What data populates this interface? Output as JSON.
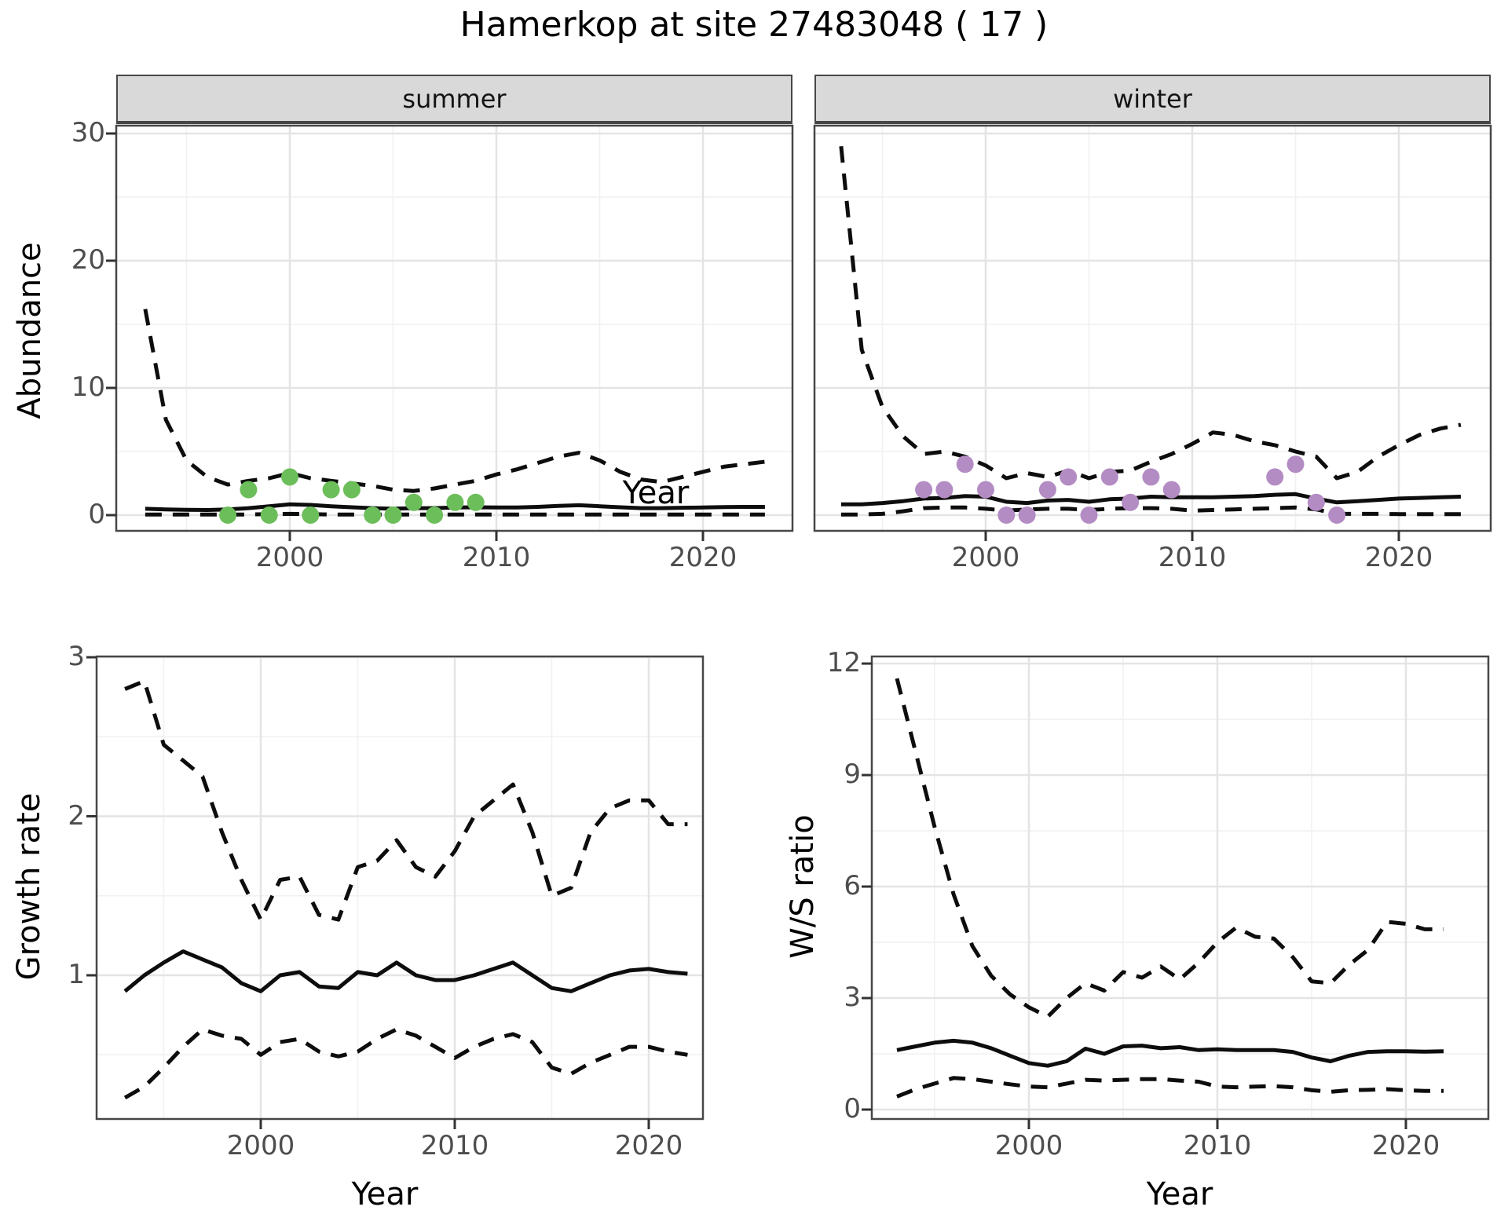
{
  "title": "Hamerkop at site 27483048 ( 17 )",
  "axis_titles": {
    "abundance": "Abundance",
    "year_top": "Year",
    "growth": "Growth rate",
    "year_growth": "Year",
    "ws": "W/S ratio",
    "year_ws": "Year"
  },
  "colors": {
    "summer_point": "#6cbe5a",
    "winter_point": "#b48cc4",
    "line": "#0d0d0d",
    "grid_major": "#e4e4e4",
    "grid_minor": "#f1f1f1",
    "panel_border": "#474747",
    "strip_bg": "#d9d9d9",
    "tick_text": "#4d4d4d",
    "tick_mark": "#333333"
  },
  "chart_data": [
    {
      "id": "summer",
      "type": "line",
      "facet_label": "summer",
      "xlabel": "Year",
      "ylabel": "Abundance",
      "x_ticks": [
        2000,
        2010,
        2020
      ],
      "x_minor": [
        1995,
        2005,
        2015
      ],
      "y_ticks": [
        0,
        10,
        20,
        30
      ],
      "y_minor": [
        5,
        15,
        25
      ],
      "xlim": [
        1991.6,
        2024.3
      ],
      "ylim": [
        -1.23,
        30.6
      ],
      "x_start": 1993,
      "series": [
        {
          "name": "mean",
          "style": "solid",
          "values": [
            0.5,
            0.45,
            0.42,
            0.4,
            0.45,
            0.55,
            0.7,
            0.85,
            0.8,
            0.7,
            0.62,
            0.55,
            0.5,
            0.55,
            0.55,
            0.6,
            0.62,
            0.6,
            0.6,
            0.65,
            0.72,
            0.78,
            0.7,
            0.62,
            0.55,
            0.55,
            0.58,
            0.6,
            0.63,
            0.65,
            0.65
          ]
        },
        {
          "name": "upper_ci",
          "style": "dashed",
          "values": [
            16.2,
            7.5,
            4.3,
            3.0,
            2.4,
            2.7,
            2.9,
            3.3,
            2.9,
            2.7,
            2.5,
            2.3,
            2.0,
            1.9,
            2.1,
            2.4,
            2.7,
            3.2,
            3.6,
            4.1,
            4.6,
            4.9,
            4.3,
            3.4,
            2.8,
            2.6,
            3.0,
            3.4,
            3.8,
            4.0,
            4.2
          ]
        },
        {
          "name": "lower_ci",
          "style": "dashed",
          "values": [
            0.05,
            0.05,
            0.05,
            0.05,
            0.05,
            0.05,
            0.08,
            0.1,
            0.08,
            0.05,
            0.05,
            0.05,
            0.05,
            0.05,
            0.05,
            0.05,
            0.05,
            0.05,
            0.05,
            0.05,
            0.05,
            0.05,
            0.05,
            0.05,
            0.05,
            0.05,
            0.05,
            0.05,
            0.05,
            0.05,
            0.05
          ]
        }
      ],
      "points": {
        "name": "observed_summer",
        "color_key": "summer_point",
        "data": [
          [
            1997,
            0
          ],
          [
            1998,
            2
          ],
          [
            1999,
            0
          ],
          [
            2000,
            3
          ],
          [
            2001,
            0
          ],
          [
            2002,
            2
          ],
          [
            2003,
            2
          ],
          [
            2004,
            0
          ],
          [
            2005,
            0
          ],
          [
            2006,
            1
          ],
          [
            2007,
            0
          ],
          [
            2008,
            1
          ],
          [
            2009,
            1
          ]
        ]
      }
    },
    {
      "id": "winter",
      "type": "line",
      "facet_label": "winter",
      "xlabel": "Year",
      "ylabel": "Abundance",
      "x_ticks": [
        2000,
        2010,
        2020
      ],
      "x_minor": [
        1995,
        2005,
        2015
      ],
      "y_ticks": [
        0,
        10,
        20,
        30
      ],
      "y_minor": [
        5,
        15,
        25
      ],
      "xlim": [
        1991.7,
        2024.4
      ],
      "ylim": [
        -1.23,
        30.6
      ],
      "x_start": 1993,
      "series": [
        {
          "name": "mean",
          "style": "solid",
          "values": [
            0.85,
            0.85,
            0.95,
            1.1,
            1.3,
            1.35,
            1.5,
            1.45,
            1.05,
            0.95,
            1.15,
            1.2,
            1.05,
            1.25,
            1.3,
            1.45,
            1.4,
            1.4,
            1.4,
            1.45,
            1.5,
            1.6,
            1.65,
            1.3,
            1.0,
            1.1,
            1.2,
            1.3,
            1.35,
            1.4,
            1.45
          ]
        },
        {
          "name": "upper_ci",
          "style": "dashed",
          "values": [
            29,
            13,
            8.5,
            6.2,
            4.8,
            5.0,
            4.6,
            3.9,
            2.9,
            3.3,
            3.0,
            3.5,
            2.9,
            3.4,
            3.5,
            4.2,
            4.8,
            5.6,
            6.5,
            6.3,
            5.8,
            5.5,
            5.0,
            4.6,
            2.9,
            3.4,
            4.6,
            5.5,
            6.3,
            6.8,
            7.1
          ]
        },
        {
          "name": "lower_ci",
          "style": "dashed",
          "values": [
            0.05,
            0.05,
            0.1,
            0.3,
            0.55,
            0.6,
            0.6,
            0.5,
            0.35,
            0.45,
            0.5,
            0.5,
            0.4,
            0.5,
            0.55,
            0.55,
            0.5,
            0.35,
            0.4,
            0.45,
            0.5,
            0.55,
            0.6,
            0.45,
            0.1,
            0.1,
            0.1,
            0.08,
            0.08,
            0.08,
            0.08
          ]
        }
      ],
      "points": {
        "name": "observed_winter",
        "color_key": "winter_point",
        "data": [
          [
            1997,
            2
          ],
          [
            1998,
            2
          ],
          [
            1999,
            4
          ],
          [
            2000,
            2
          ],
          [
            2001,
            0
          ],
          [
            2002,
            0
          ],
          [
            2003,
            2
          ],
          [
            2004,
            3
          ],
          [
            2005,
            0
          ],
          [
            2006,
            3
          ],
          [
            2007,
            1
          ],
          [
            2008,
            3
          ],
          [
            2009,
            2
          ],
          [
            2014,
            3
          ],
          [
            2015,
            4
          ],
          [
            2016,
            1
          ],
          [
            2017,
            0
          ]
        ]
      }
    },
    {
      "id": "growth_rate",
      "type": "line",
      "facet_label": "",
      "xlabel": "Year",
      "ylabel": "Growth rate",
      "x_ticks": [
        2000,
        2010,
        2020
      ],
      "x_minor": [
        1995,
        2005,
        2015
      ],
      "y_ticks": [
        1,
        2,
        3
      ],
      "y_minor": [
        0.5,
        1.5,
        2.5
      ],
      "xlim": [
        1991.5,
        2022.8
      ],
      "ylim": [
        0.1,
        3.0
      ],
      "x_start": 1993,
      "series": [
        {
          "name": "mean",
          "style": "solid",
          "values": [
            0.9,
            1.0,
            1.08,
            1.15,
            1.1,
            1.05,
            0.95,
            0.9,
            1.0,
            1.02,
            0.93,
            0.92,
            1.02,
            1.0,
            1.08,
            1.0,
            0.97,
            0.97,
            1.0,
            1.04,
            1.08,
            1.0,
            0.92,
            0.9,
            0.95,
            1.0,
            1.03,
            1.04,
            1.02,
            1.01
          ]
        },
        {
          "name": "upper_ci",
          "style": "dashed",
          "values": [
            2.8,
            2.85,
            2.45,
            2.35,
            2.25,
            1.9,
            1.6,
            1.35,
            1.6,
            1.62,
            1.38,
            1.35,
            1.68,
            1.72,
            1.85,
            1.68,
            1.62,
            1.78,
            2.0,
            2.1,
            2.2,
            1.9,
            1.5,
            1.55,
            1.9,
            2.05,
            2.1,
            2.1,
            1.95,
            1.95
          ]
        },
        {
          "name": "lower_ci",
          "style": "dashed",
          "values": [
            0.23,
            0.3,
            0.42,
            0.55,
            0.66,
            0.62,
            0.6,
            0.5,
            0.58,
            0.6,
            0.52,
            0.49,
            0.52,
            0.6,
            0.66,
            0.62,
            0.55,
            0.48,
            0.55,
            0.6,
            0.63,
            0.58,
            0.42,
            0.38,
            0.45,
            0.5,
            0.55,
            0.55,
            0.52,
            0.5
          ]
        }
      ],
      "points": null
    },
    {
      "id": "ws_ratio",
      "type": "line",
      "facet_label": "",
      "xlabel": "Year",
      "ylabel": "W/S ratio",
      "x_ticks": [
        2000,
        2010,
        2020
      ],
      "x_minor": [
        1995,
        2005,
        2015
      ],
      "y_ticks": [
        0,
        3,
        6,
        9,
        12
      ],
      "y_minor": [
        1.5,
        4.5,
        7.5,
        10.5
      ],
      "xlim": [
        1991.7,
        2024.4
      ],
      "ylim": [
        -0.25,
        12.2
      ],
      "x_start": 1993,
      "series": [
        {
          "name": "mean",
          "style": "solid",
          "values": [
            1.6,
            1.7,
            1.8,
            1.85,
            1.8,
            1.65,
            1.45,
            1.25,
            1.18,
            1.3,
            1.64,
            1.5,
            1.7,
            1.72,
            1.65,
            1.68,
            1.6,
            1.62,
            1.6,
            1.6,
            1.6,
            1.55,
            1.4,
            1.3,
            1.45,
            1.55,
            1.57,
            1.57,
            1.56,
            1.57
          ]
        },
        {
          "name": "upper_ci",
          "style": "dashed",
          "values": [
            11.6,
            9.6,
            7.6,
            5.8,
            4.4,
            3.6,
            3.1,
            2.75,
            2.5,
            3.0,
            3.4,
            3.2,
            3.7,
            3.55,
            3.85,
            3.5,
            3.95,
            4.5,
            4.9,
            4.65,
            4.6,
            4.1,
            3.45,
            3.4,
            3.9,
            4.3,
            5.05,
            5.0,
            4.85,
            4.85
          ]
        },
        {
          "name": "lower_ci",
          "style": "dashed",
          "values": [
            0.35,
            0.55,
            0.7,
            0.85,
            0.82,
            0.75,
            0.68,
            0.62,
            0.6,
            0.7,
            0.8,
            0.78,
            0.8,
            0.82,
            0.82,
            0.78,
            0.75,
            0.62,
            0.6,
            0.62,
            0.63,
            0.6,
            0.52,
            0.48,
            0.52,
            0.53,
            0.55,
            0.52,
            0.5,
            0.5
          ]
        }
      ],
      "points": null
    }
  ]
}
